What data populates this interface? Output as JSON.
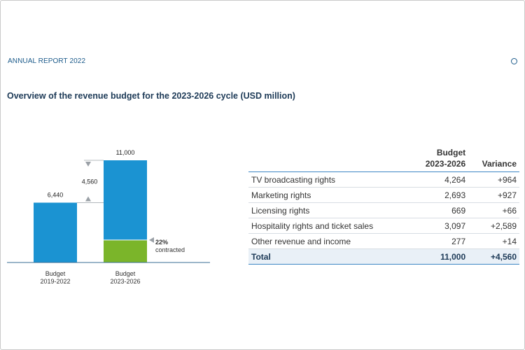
{
  "header": {
    "report_label": "ANNUAL REPORT 2022"
  },
  "title": "Overview of the revenue budget for the 2023-2026 cycle (USD million)",
  "chart_data": {
    "type": "bar",
    "categories": [
      "Budget\n2019-2022",
      "Budget\n2023-2026"
    ],
    "values": [
      6440,
      11000
    ],
    "value_labels": [
      "6,440",
      "11,000"
    ],
    "increase_label": "4,560",
    "contracted_share": 0.22,
    "contracted_label": [
      "22%",
      "contracted"
    ],
    "ylim": [
      0,
      11000
    ],
    "colors": {
      "bar": "#1b93d2",
      "contracted": "#7bb52a",
      "marker": "#9aa0a6",
      "axis": "#3a6d94"
    }
  },
  "table": {
    "columns": [
      "",
      "Budget\n2023-2026",
      "Variance"
    ],
    "rows": [
      {
        "label": "TV broadcasting rights",
        "budget": "4,264",
        "variance": "+964"
      },
      {
        "label": "Marketing rights",
        "budget": "2,693",
        "variance": "+927"
      },
      {
        "label": "Licensing rights",
        "budget": "669",
        "variance": "+66"
      },
      {
        "label": "Hospitality rights and ticket sales",
        "budget": "3,097",
        "variance": "+2,589"
      },
      {
        "label": "Other revenue and income",
        "budget": "277",
        "variance": "+14"
      }
    ],
    "total": {
      "label": "Total",
      "budget": "11,000",
      "variance": "+4,560"
    }
  }
}
